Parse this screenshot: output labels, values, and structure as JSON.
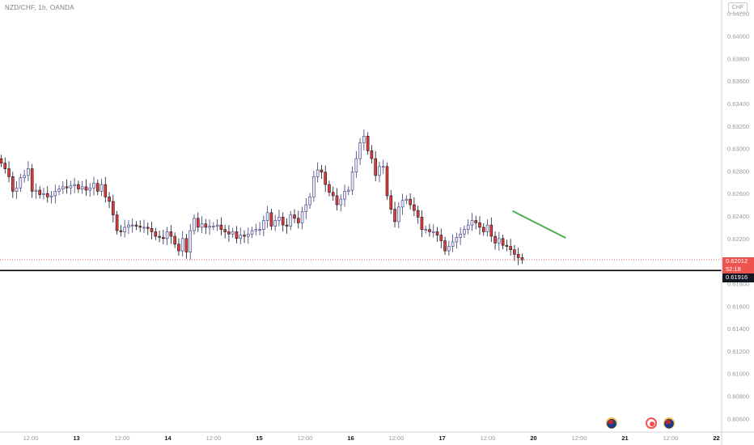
{
  "header": {
    "symbol_title": "NZD/CHF, 1h, OANDA",
    "currency_badge": "CHF"
  },
  "price_tags": {
    "current_price": "0.62012",
    "countdown": "52:18",
    "level_price": "0.61916"
  },
  "colors": {
    "up_candle": "#e8e8f8",
    "up_border": "#3a3a7a",
    "down_candle": "#e53935",
    "down_border": "#131722",
    "trendline": "#4caf50",
    "level_line": "#000000",
    "current_price_line": "#ef5350",
    "tag_red": "#ef5350"
  },
  "events": [
    {
      "icon": "new-zealand-flag-icon"
    },
    {
      "icon": "switzerland-flag-icon"
    },
    {
      "icon": "new-zealand-flag-icon"
    }
  ],
  "chart_data": {
    "type": "candlestick",
    "title": "NZD/CHF, 1h, OANDA",
    "timeframe": "1h",
    "y_axis": {
      "ticks": [
        "0.64200",
        "0.64000",
        "0.63800",
        "0.63600",
        "0.63400",
        "0.63200",
        "0.63000",
        "0.62800",
        "0.62600",
        "0.62400",
        "0.62200",
        "0.61800",
        "0.61600",
        "0.61400",
        "0.61200",
        "0.61000",
        "0.60800",
        "0.60600"
      ],
      "range": [
        0.6048,
        0.6432
      ]
    },
    "x_axis": {
      "ticks": [
        "12:00",
        "13",
        "12:00",
        "14",
        "12:00",
        "15",
        "12:00",
        "16",
        "12:00",
        "17",
        "12:00",
        "20",
        "12:00",
        "21",
        "12:00",
        "22"
      ]
    },
    "last_price": 0.62012,
    "horizontal_level": 0.61916,
    "trendline": {
      "start": 0.62445,
      "end": 0.62205
    },
    "series": [
      {
        "name": "",
        "close": [
          0.6287,
          0.6282,
          0.6275,
          0.6262,
          0.6265,
          0.6274,
          0.6276,
          0.6282,
          0.6262,
          0.6263,
          0.6259,
          0.626,
          0.6257,
          0.6258,
          0.6262,
          0.6264,
          0.6266,
          0.6265,
          0.6267,
          0.6268,
          0.6264,
          0.6266,
          0.6263,
          0.6265,
          0.6269,
          0.6262,
          0.6268,
          0.6257,
          0.6253,
          0.6241,
          0.6227,
          0.6226,
          0.623,
          0.6232,
          0.6232,
          0.6231,
          0.623,
          0.623,
          0.6229,
          0.6226,
          0.6222,
          0.6221,
          0.622,
          0.6226,
          0.6222,
          0.6215,
          0.6209,
          0.622,
          0.6208,
          0.6227,
          0.6238,
          0.623,
          0.6233,
          0.623,
          0.6231,
          0.6231,
          0.6232,
          0.6228,
          0.6226,
          0.6224,
          0.6226,
          0.622,
          0.6223,
          0.6222,
          0.6224,
          0.6227,
          0.6228,
          0.6228,
          0.6236,
          0.6243,
          0.6231,
          0.6236,
          0.6239,
          0.6232,
          0.6231,
          0.6241,
          0.6238,
          0.6234,
          0.6244,
          0.625,
          0.6257,
          0.6275,
          0.6281,
          0.6279,
          0.6268,
          0.6261,
          0.6258,
          0.625,
          0.6255,
          0.6262,
          0.6263,
          0.6279,
          0.6291,
          0.6305,
          0.6311,
          0.6298,
          0.6291,
          0.6276,
          0.6284,
          0.6284,
          0.6258,
          0.6246,
          0.6235,
          0.6248,
          0.6254,
          0.6255,
          0.625,
          0.6245,
          0.6239,
          0.6228,
          0.6228,
          0.6226,
          0.6226,
          0.6223,
          0.6218,
          0.6209,
          0.6213,
          0.6217,
          0.6221,
          0.6224,
          0.6228,
          0.6232,
          0.6236,
          0.6234,
          0.623,
          0.6226,
          0.6232,
          0.6222,
          0.6216,
          0.622,
          0.6214,
          0.6213,
          0.621,
          0.6206,
          0.6203,
          0.6201
        ]
      }
    ]
  }
}
